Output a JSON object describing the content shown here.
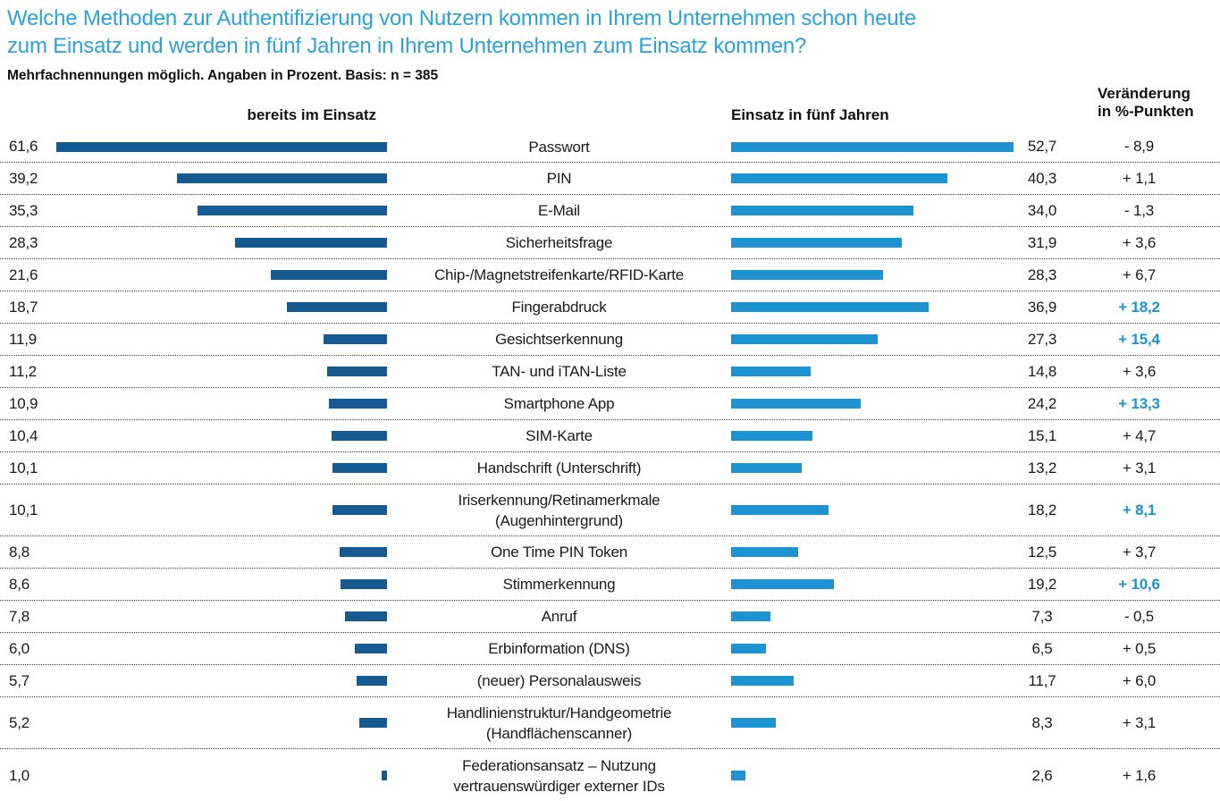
{
  "chart_data": {
    "type": "bar",
    "orientation": "horizontal-paired",
    "unit": "percent",
    "title_lines": [
      "Welche Methoden zur Authentifizierung von Nutzern kommen in Ihrem Unternehmen schon heute",
      "zum Einsatz und werden in fünf Jahren in Ihrem Unternehmen zum Einsatz kommen?"
    ],
    "subtitle": "Mehrfachnennungen möglich. Angaben in Prozent. Basis: n = 385",
    "left_header": "bereits im Einsatz",
    "right_header": "Einsatz in fünf Jahren",
    "change_header_lines": [
      "Veränderung",
      "in %-Punkten"
    ],
    "series": [
      {
        "name": "bereits im Einsatz",
        "color": "#155a90"
      },
      {
        "name": "Einsatz in fünf Jahren",
        "color": "#1e93d1"
      }
    ],
    "colors": {
      "title": "#2aa2da",
      "current_bar": "#155a90",
      "future_bar": "#1e93d1",
      "highlight_text": "#1e93d1",
      "text": "#1a1a1a"
    },
    "axis_max": 62,
    "rows": [
      {
        "label_lines": [
          "Passwort"
        ],
        "current": 61.6,
        "future": 52.7,
        "current_label": "61,6",
        "future_label": "52,7",
        "change_label": "- 8,9",
        "highlight": false
      },
      {
        "label_lines": [
          "PIN"
        ],
        "current": 39.2,
        "future": 40.3,
        "current_label": "39,2",
        "future_label": "40,3",
        "change_label": "+ 1,1",
        "highlight": false
      },
      {
        "label_lines": [
          "E-Mail"
        ],
        "current": 35.3,
        "future": 34.0,
        "current_label": "35,3",
        "future_label": "34,0",
        "change_label": "- 1,3",
        "highlight": false
      },
      {
        "label_lines": [
          "Sicherheitsfrage"
        ],
        "current": 28.3,
        "future": 31.9,
        "current_label": "28,3",
        "future_label": "31,9",
        "change_label": "+ 3,6",
        "highlight": false
      },
      {
        "label_lines": [
          "Chip-/Magnetstreifenkarte/RFID-Karte"
        ],
        "current": 21.6,
        "future": 28.3,
        "current_label": "21,6",
        "future_label": "28,3",
        "change_label": "+ 6,7",
        "highlight": false
      },
      {
        "label_lines": [
          "Fingerabdruck"
        ],
        "current": 18.7,
        "future": 36.9,
        "current_label": "18,7",
        "future_label": "36,9",
        "change_label": "+ 18,2",
        "highlight": true
      },
      {
        "label_lines": [
          "Gesichtserkennung"
        ],
        "current": 11.9,
        "future": 27.3,
        "current_label": "11,9",
        "future_label": "27,3",
        "change_label": "+ 15,4",
        "highlight": true
      },
      {
        "label_lines": [
          "TAN- und iTAN-Liste"
        ],
        "current": 11.2,
        "future": 14.8,
        "current_label": "11,2",
        "future_label": "14,8",
        "change_label": "+ 3,6",
        "highlight": false
      },
      {
        "label_lines": [
          "Smartphone App"
        ],
        "current": 10.9,
        "future": 24.2,
        "current_label": "10,9",
        "future_label": "24,2",
        "change_label": "+ 13,3",
        "highlight": true
      },
      {
        "label_lines": [
          "SIM-Karte"
        ],
        "current": 10.4,
        "future": 15.1,
        "current_label": "10,4",
        "future_label": "15,1",
        "change_label": "+ 4,7",
        "highlight": false
      },
      {
        "label_lines": [
          "Handschrift (Unterschrift)"
        ],
        "current": 10.1,
        "future": 13.2,
        "current_label": "10,1",
        "future_label": "13,2",
        "change_label": "+ 3,1",
        "highlight": false
      },
      {
        "label_lines": [
          "Iriserkennung/Retinamerkmale",
          "(Augenhintergrund)"
        ],
        "current": 10.1,
        "future": 18.2,
        "current_label": "10,1",
        "future_label": "18,2",
        "change_label": "+ 8,1",
        "highlight": true
      },
      {
        "label_lines": [
          "One Time PIN Token"
        ],
        "current": 8.8,
        "future": 12.5,
        "current_label": "8,8",
        "future_label": "12,5",
        "change_label": "+ 3,7",
        "highlight": false
      },
      {
        "label_lines": [
          "Stimmerkennung"
        ],
        "current": 8.6,
        "future": 19.2,
        "current_label": "8,6",
        "future_label": "19,2",
        "change_label": "+ 10,6",
        "highlight": true
      },
      {
        "label_lines": [
          "Anruf"
        ],
        "current": 7.8,
        "future": 7.3,
        "current_label": "7,8",
        "future_label": "7,3",
        "change_label": "- 0,5",
        "highlight": false
      },
      {
        "label_lines": [
          "Erbinformation (DNS)"
        ],
        "current": 6.0,
        "future": 6.5,
        "current_label": "6,0",
        "future_label": "6,5",
        "change_label": "+ 0,5",
        "highlight": false
      },
      {
        "label_lines": [
          "(neuer) Personalausweis"
        ],
        "current": 5.7,
        "future": 11.7,
        "current_label": "5,7",
        "future_label": "11,7",
        "change_label": "+ 6,0",
        "highlight": false
      },
      {
        "label_lines": [
          "Handlinienstruktur/Handgeometrie",
          "(Handflächenscanner)"
        ],
        "current": 5.2,
        "future": 8.3,
        "current_label": "5,2",
        "future_label": "8,3",
        "change_label": "+ 3,1",
        "highlight": false
      },
      {
        "label_lines": [
          "Federationsansatz – Nutzung",
          "vertrauenswürdiger externer IDs"
        ],
        "current": 1.0,
        "future": 2.6,
        "current_label": "1,0",
        "future_label": "2,6",
        "change_label": "+ 1,6",
        "highlight": false
      }
    ]
  }
}
